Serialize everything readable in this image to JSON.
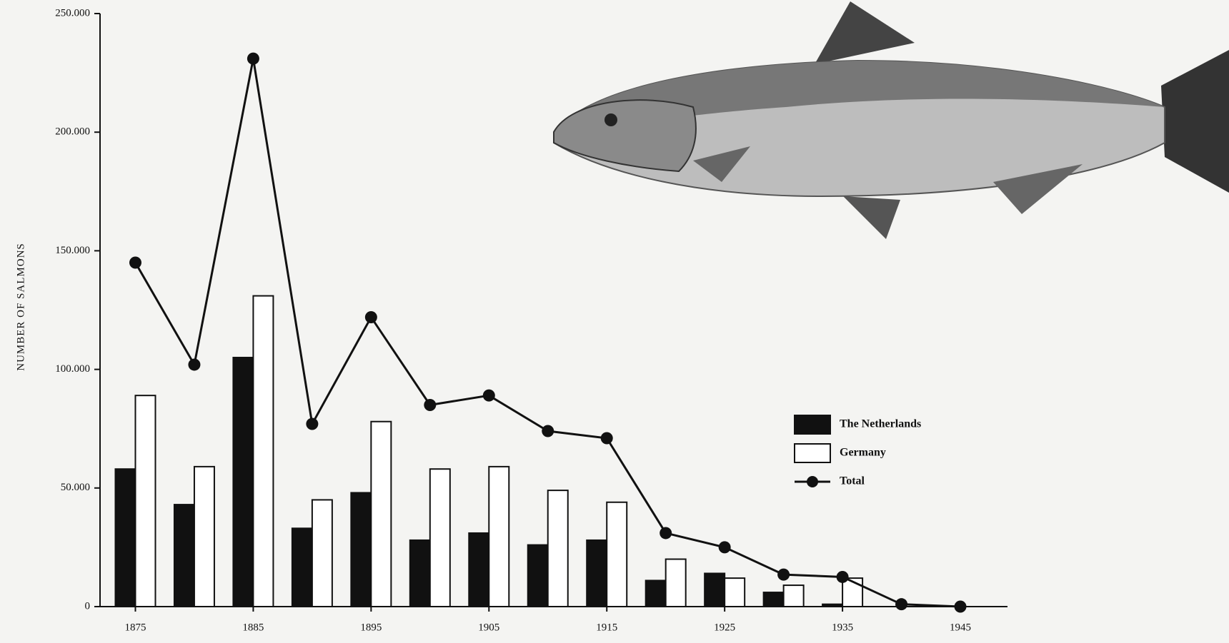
{
  "chart_data": {
    "type": "bar-line",
    "y_label": "NUMBER OF SALMONS",
    "x": [
      1875,
      1880,
      1885,
      1890,
      1895,
      1900,
      1905,
      1910,
      1915,
      1920,
      1925,
      1930,
      1935,
      1940,
      1945
    ],
    "series": [
      {
        "name": "The Netherlands",
        "kind": "bar",
        "color": "#111111",
        "values": [
          58000,
          43000,
          105000,
          33000,
          48000,
          28000,
          31000,
          26000,
          28000,
          11000,
          14000,
          6000,
          1000,
          null,
          null
        ]
      },
      {
        "name": "Germany",
        "kind": "bar",
        "color": "#ffffff",
        "values": [
          89000,
          59000,
          131000,
          45000,
          78000,
          58000,
          59000,
          49000,
          44000,
          20000,
          12000,
          9000,
          12000,
          null,
          null
        ]
      },
      {
        "name": "Total",
        "kind": "line",
        "color": "#111111",
        "values": [
          145000,
          102000,
          231000,
          77000,
          122000,
          85000,
          89000,
          74000,
          71000,
          31000,
          25000,
          13500,
          12500,
          1000,
          0
        ]
      }
    ],
    "xlim": [
      1872,
      1949
    ],
    "xticks": [
      1875,
      1885,
      1895,
      1905,
      1915,
      1925,
      1935,
      1945
    ],
    "ylim": [
      0,
      250000
    ],
    "yticks": [
      0,
      {
        "value": 50000,
        "label": "50.000"
      },
      {
        "value": 100000,
        "label": "100.000"
      },
      {
        "value": 150000,
        "label": "150.000"
      },
      {
        "value": 200000,
        "label": "200.000"
      },
      {
        "value": 250000,
        "label": "250.000"
      }
    ],
    "legend": "center-right"
  }
}
